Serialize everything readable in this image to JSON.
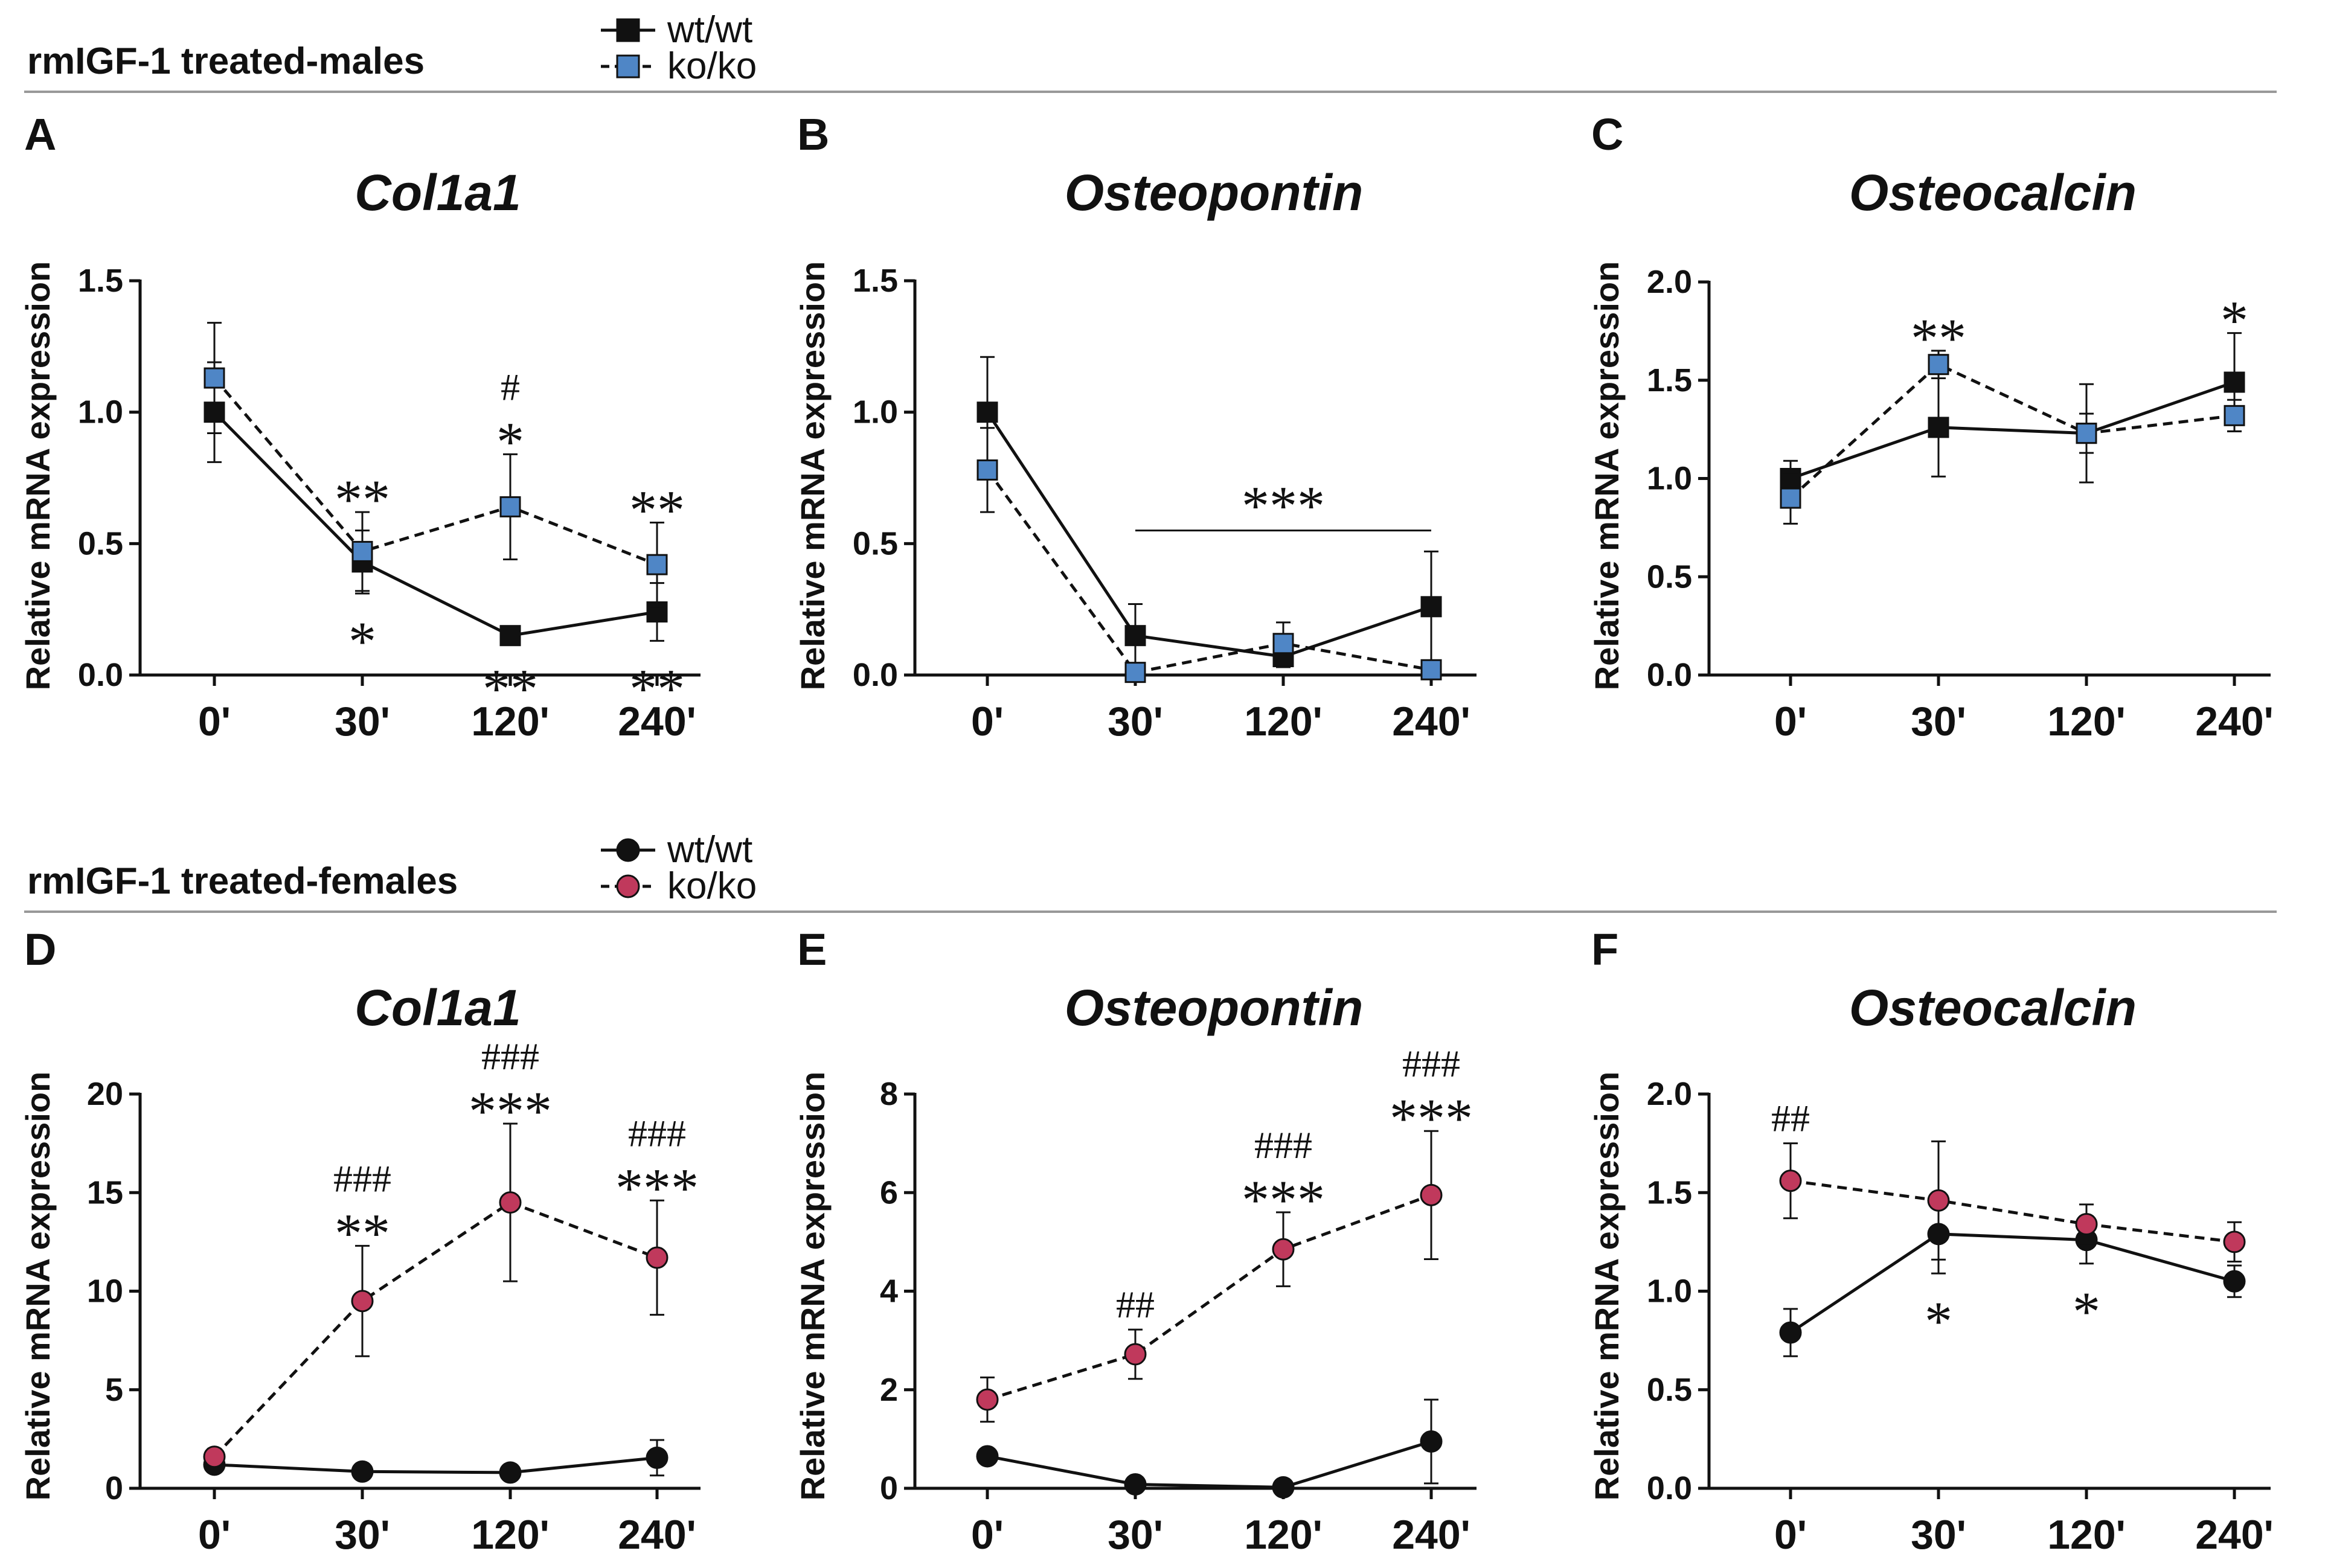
{
  "colors": {
    "wt": "#111111",
    "ko_male": "#4f86c6",
    "ko_female": "#c0395c",
    "rule": "#999999"
  },
  "sections": [
    {
      "heading": "rmIGF-1 treated-males",
      "legend": [
        {
          "label": "wt/wt",
          "marker": "square",
          "line": "solid",
          "key": "wt"
        },
        {
          "label": "ko/ko",
          "marker": "square",
          "line": "dashed",
          "key": "ko_male"
        }
      ]
    },
    {
      "heading": "rmIGF-1 treated-females",
      "legend": [
        {
          "label": "wt/wt",
          "marker": "circle",
          "line": "solid",
          "key": "wt"
        },
        {
          "label": "ko/ko",
          "marker": "circle",
          "line": "dashed",
          "key": "ko_female"
        }
      ]
    }
  ],
  "chart_data": [
    {
      "panel": "A",
      "type": "line",
      "title": "Col1a1",
      "ylabel": "Relative mRNA expression",
      "categories": [
        "0'",
        "30'",
        "120'",
        "240'"
      ],
      "ylim": [
        0,
        1.5
      ],
      "yticks": [
        "0.0",
        "0.5",
        "1.0",
        "1.5"
      ],
      "marker": "square",
      "series": [
        {
          "name": "wt/wt",
          "values": [
            1.0,
            0.43,
            0.15,
            0.24
          ],
          "err": [
            0.19,
            0.12,
            0.02,
            0.11
          ]
        },
        {
          "name": "ko/ko",
          "values": [
            1.13,
            0.47,
            0.64,
            0.42
          ],
          "err": [
            0.21,
            0.15,
            0.2,
            0.16
          ]
        }
      ],
      "annotations": [
        {
          "cat": 1,
          "above": true,
          "text": "**"
        },
        {
          "cat": 1,
          "above": false,
          "text": "*"
        },
        {
          "cat": 2,
          "above": true,
          "text": "*"
        },
        {
          "cat": 2,
          "above": true,
          "text": "#"
        },
        {
          "cat": 2,
          "above": false,
          "text": "**"
        },
        {
          "cat": 3,
          "above": true,
          "text": "**"
        },
        {
          "cat": 3,
          "above": false,
          "text": "**"
        }
      ]
    },
    {
      "panel": "B",
      "type": "line",
      "title": "Osteopontin",
      "ylabel": "Relative mRNA expression",
      "categories": [
        "0'",
        "30'",
        "120'",
        "240'"
      ],
      "ylim": [
        0,
        1.5
      ],
      "yticks": [
        "0.0",
        "0.5",
        "1.0",
        "1.5"
      ],
      "marker": "square",
      "series": [
        {
          "name": "wt/wt",
          "values": [
            1.0,
            0.15,
            0.07,
            0.26
          ],
          "err": [
            0.21,
            0.12,
            0.04,
            0.21
          ]
        },
        {
          "name": "ko/ko",
          "values": [
            0.78,
            0.01,
            0.12,
            0.02
          ],
          "err": [
            0.16,
            0.01,
            0.08,
            0.01
          ]
        }
      ],
      "bracket": {
        "from": 1,
        "to": 3,
        "text": "***"
      }
    },
    {
      "panel": "C",
      "type": "line",
      "title": "Osteocalcin",
      "ylabel": "Relative mRNA expression",
      "categories": [
        "0'",
        "30'",
        "120'",
        "240'"
      ],
      "ylim": [
        0,
        2.0
      ],
      "yticks": [
        "0.0",
        "0.5",
        "1.0",
        "1.5",
        "2.0"
      ],
      "marker": "square",
      "series": [
        {
          "name": "wt/wt",
          "values": [
            1.0,
            1.26,
            1.23,
            1.49
          ],
          "err": [
            0.09,
            0.25,
            0.25,
            0.25
          ]
        },
        {
          "name": "ko/ko",
          "values": [
            0.9,
            1.58,
            1.23,
            1.32
          ],
          "err": [
            0.13,
            0.07,
            0.1,
            0.08
          ]
        }
      ],
      "annotations": [
        {
          "cat": 1,
          "above": true,
          "text": "**"
        },
        {
          "cat": 3,
          "above": true,
          "text": "*"
        }
      ]
    },
    {
      "panel": "D",
      "type": "line",
      "title": "Col1a1",
      "ylabel": "Relative mRNA expression",
      "categories": [
        "0'",
        "30'",
        "120'",
        "240'"
      ],
      "ylim": [
        0,
        20
      ],
      "yticks": [
        "0",
        "5",
        "10",
        "15",
        "20"
      ],
      "marker": "circle",
      "series": [
        {
          "name": "wt/wt",
          "values": [
            1.2,
            0.85,
            0.8,
            1.55
          ],
          "err": [
            0.2,
            0.2,
            0.2,
            0.9
          ]
        },
        {
          "name": "ko/ko",
          "values": [
            1.6,
            9.5,
            14.5,
            11.7
          ],
          "err": [
            0.4,
            2.8,
            4.0,
            2.9
          ]
        }
      ],
      "annotations": [
        {
          "cat": 1,
          "above": true,
          "text": "**"
        },
        {
          "cat": 1,
          "above": true,
          "text": "###"
        },
        {
          "cat": 2,
          "above": true,
          "text": "***"
        },
        {
          "cat": 2,
          "above": true,
          "text": "###"
        },
        {
          "cat": 3,
          "above": true,
          "text": "***"
        },
        {
          "cat": 3,
          "above": true,
          "text": "###"
        }
      ]
    },
    {
      "panel": "E",
      "type": "line",
      "title": "Osteopontin",
      "ylabel": "Relative mRNA expression",
      "categories": [
        "0'",
        "30'",
        "120'",
        "240'"
      ],
      "ylim": [
        0,
        8
      ],
      "yticks": [
        "0",
        "2",
        "4",
        "6",
        "8"
      ],
      "marker": "circle",
      "series": [
        {
          "name": "wt/wt",
          "values": [
            0.65,
            0.08,
            0.02,
            0.95
          ],
          "err": [
            0.1,
            0.05,
            0.03,
            0.85
          ]
        },
        {
          "name": "ko/ko",
          "values": [
            1.8,
            2.72,
            4.85,
            5.95
          ],
          "err": [
            0.45,
            0.5,
            0.75,
            1.3
          ]
        }
      ],
      "annotations": [
        {
          "cat": 1,
          "above": true,
          "text": "##"
        },
        {
          "cat": 2,
          "above": true,
          "text": "***"
        },
        {
          "cat": 2,
          "above": true,
          "text": "###"
        },
        {
          "cat": 3,
          "above": true,
          "text": "***"
        },
        {
          "cat": 3,
          "above": true,
          "text": "###"
        }
      ]
    },
    {
      "panel": "F",
      "type": "line",
      "title": "Osteocalcin",
      "ylabel": "Relative mRNA expression",
      "categories": [
        "0'",
        "30'",
        "120'",
        "240'"
      ],
      "ylim": [
        0,
        2.0
      ],
      "yticks": [
        "0.0",
        "0.5",
        "1.0",
        "1.5",
        "2.0"
      ],
      "marker": "circle",
      "series": [
        {
          "name": "wt/wt",
          "values": [
            0.79,
            1.29,
            1.26,
            1.05
          ],
          "err": [
            0.12,
            0.2,
            0.12,
            0.08
          ]
        },
        {
          "name": "ko/ko",
          "values": [
            1.56,
            1.46,
            1.34,
            1.25
          ],
          "err": [
            0.19,
            0.3,
            0.1,
            0.1
          ]
        }
      ],
      "annotations": [
        {
          "cat": 0,
          "above": true,
          "text": "##"
        },
        {
          "cat": 1,
          "above": false,
          "text": "*"
        },
        {
          "cat": 2,
          "above": false,
          "text": "*"
        }
      ]
    }
  ]
}
